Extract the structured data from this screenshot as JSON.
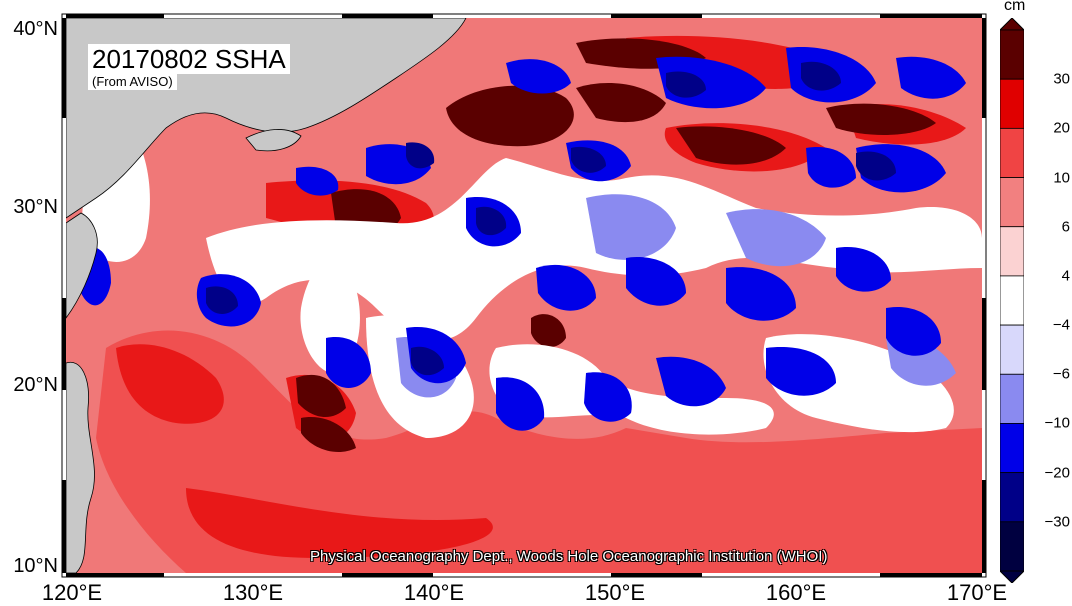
{
  "map": {
    "title": "20170802 SSHA",
    "subtitle": "(From AVISO)",
    "credit": "Physical Oceanography Dept., Woods Hole Oceanographic Institution (WHOI)",
    "lat_labels": [
      "40°N",
      "30°N",
      "20°N",
      "10°N"
    ],
    "lon_labels": [
      "120°E",
      "130°E",
      "140°E",
      "150°E",
      "160°E",
      "170°E"
    ],
    "land_color": "#c8c8c8",
    "ocean_background": "#f07878"
  },
  "colorbar": {
    "unit": "cm",
    "tick_labels": [
      "30",
      "20",
      "10",
      "6",
      "4",
      "−4",
      "−6",
      "−10",
      "−20",
      "−30"
    ],
    "colors": [
      "#5a0000",
      "#e00000",
      "#f04444",
      "#f28080",
      "#fbd2d2",
      "#ffffff",
      "#d8d8fb",
      "#8a8af0",
      "#0000e8",
      "#000088",
      "#000040"
    ]
  }
}
